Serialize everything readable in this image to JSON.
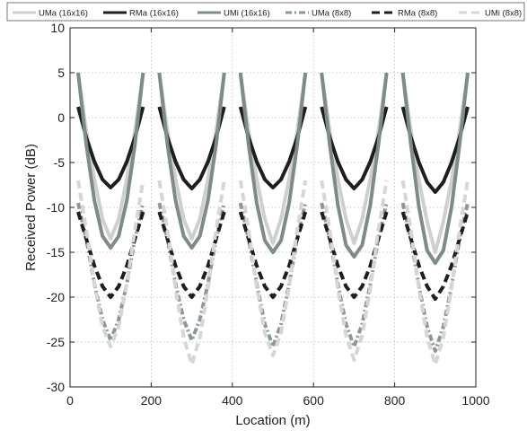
{
  "chart_data": {
    "type": "line",
    "xlabel": "Location (m)",
    "ylabel": "Received Power (dB)",
    "xlim": [
      0,
      1000
    ],
    "ylim": [
      -30,
      10
    ],
    "xticks": [
      "0",
      "200",
      "400",
      "600",
      "800",
      "1000"
    ],
    "yticks": [
      "-30",
      "-25",
      "-20",
      "-15",
      "-10",
      "-5",
      "0",
      "5",
      "10"
    ],
    "grid": true,
    "legend_position": "top",
    "series": [
      {
        "name": "UMa (16x16)",
        "color": "#cfcfcf",
        "style": "solid",
        "x": [
          20,
          40,
          60,
          80,
          100,
          120,
          140,
          160,
          180,
          null,
          220,
          240,
          260,
          280,
          300,
          320,
          340,
          360,
          380,
          null,
          420,
          440,
          460,
          480,
          500,
          520,
          540,
          560,
          580,
          null,
          620,
          640,
          660,
          680,
          700,
          720,
          740,
          760,
          780,
          null,
          820,
          840,
          860,
          880,
          900,
          920,
          940,
          960,
          980
        ],
        "y": [
          5,
          -1.5,
          -6.8,
          -11.3,
          -13.5,
          -11.3,
          -6.8,
          -1.5,
          5,
          null,
          5,
          -1.5,
          -6.8,
          -11.3,
          -13.5,
          -11.3,
          -6.8,
          -1.5,
          5,
          null,
          5,
          -1.5,
          -6.8,
          -11.3,
          -14,
          -11.3,
          -6.8,
          -1.5,
          5,
          null,
          5,
          -1.5,
          -6.8,
          -11.3,
          -14,
          -11.3,
          -6.8,
          -1.5,
          5,
          null,
          5,
          -1.5,
          -7,
          -11.6,
          -15,
          -11.6,
          -7,
          -1.5,
          5
        ]
      },
      {
        "name": "RMa (16x16)",
        "color": "#1e1e1e",
        "style": "solid",
        "x": [
          20,
          40,
          60,
          80,
          100,
          120,
          140,
          160,
          180,
          null,
          220,
          240,
          260,
          280,
          300,
          320,
          340,
          360,
          380,
          null,
          420,
          440,
          460,
          480,
          500,
          520,
          540,
          560,
          580,
          null,
          620,
          640,
          660,
          680,
          700,
          720,
          740,
          760,
          780,
          null,
          820,
          840,
          860,
          880,
          900,
          920,
          940,
          960,
          980
        ],
        "y": [
          1.2,
          -2.2,
          -4.9,
          -6.9,
          -7.8,
          -6.9,
          -4.9,
          -2.2,
          1.2,
          null,
          1.2,
          -2.2,
          -4.9,
          -6.9,
          -7.9,
          -6.9,
          -4.9,
          -2.2,
          1.2,
          null,
          1.2,
          -2.2,
          -4.9,
          -6.9,
          -7.8,
          -6.9,
          -4.9,
          -2.2,
          1.2,
          null,
          1.2,
          -2.2,
          -4.9,
          -6.9,
          -7.9,
          -6.9,
          -4.9,
          -2.2,
          1.2,
          null,
          1.2,
          -2.2,
          -5,
          -7.2,
          -8.3,
          -7.2,
          -5,
          -2.2,
          1.2
        ]
      },
      {
        "name": "UMi (16x16)",
        "color": "#7e8c85",
        "style": "solid",
        "x": [
          20,
          40,
          60,
          80,
          100,
          120,
          140,
          160,
          180,
          null,
          220,
          240,
          260,
          280,
          300,
          320,
          340,
          360,
          380,
          null,
          420,
          440,
          460,
          480,
          500,
          520,
          540,
          560,
          580,
          null,
          620,
          640,
          660,
          680,
          700,
          720,
          740,
          760,
          780,
          null,
          820,
          840,
          860,
          880,
          900,
          920,
          940,
          960,
          980
        ],
        "y": [
          5,
          -3,
          -9.2,
          -13.2,
          -14.5,
          -13.2,
          -9.2,
          -3,
          5,
          null,
          5,
          -3,
          -9.2,
          -13.2,
          -14.5,
          -13.2,
          -9.2,
          -3,
          5,
          null,
          5,
          -3,
          -9.5,
          -13.7,
          -15,
          -13.7,
          -9.5,
          -3,
          5,
          null,
          5,
          -3,
          -9.7,
          -14.2,
          -15.5,
          -14.2,
          -9.7,
          -3,
          5,
          null,
          5,
          -3,
          -10,
          -14.8,
          -16.2,
          -14.8,
          -10,
          -3,
          5
        ]
      },
      {
        "name": "UMa (8x8)",
        "color": "#8a9a92",
        "style": "dashdot",
        "x": [
          20,
          40,
          60,
          80,
          100,
          120,
          140,
          160,
          180,
          null,
          220,
          240,
          260,
          280,
          300,
          320,
          340,
          360,
          380,
          null,
          420,
          440,
          460,
          480,
          500,
          520,
          540,
          560,
          580,
          null,
          620,
          640,
          660,
          680,
          700,
          720,
          740,
          760,
          780,
          null,
          820,
          840,
          860,
          880,
          900,
          920,
          940,
          960,
          980
        ],
        "y": [
          -9.5,
          -13.5,
          -18.5,
          -22.5,
          -24.8,
          -22.5,
          -18.5,
          -13.5,
          -9.5,
          null,
          -9.5,
          -13.5,
          -18.5,
          -22.5,
          -24.8,
          -22.5,
          -18.5,
          -13.5,
          -9.5,
          null,
          -9.5,
          -13.5,
          -18.5,
          -23,
          -25.5,
          -23,
          -18.5,
          -13.5,
          -9.5,
          null,
          -9.5,
          -13.5,
          -18.5,
          -23,
          -25.5,
          -23,
          -18.5,
          -13.5,
          -9.5,
          null,
          -9.5,
          -13.5,
          -18.8,
          -23.3,
          -26,
          -23.3,
          -18.8,
          -13.5,
          -9.5
        ]
      },
      {
        "name": "RMa (8x8)",
        "color": "#1e1e1e",
        "style": "dashed",
        "x": [
          20,
          40,
          60,
          80,
          100,
          120,
          140,
          160,
          180,
          null,
          220,
          240,
          260,
          280,
          300,
          320,
          340,
          360,
          380,
          null,
          420,
          440,
          460,
          480,
          500,
          520,
          540,
          560,
          580,
          null,
          620,
          640,
          660,
          680,
          700,
          720,
          740,
          760,
          780,
          null,
          820,
          840,
          860,
          880,
          900,
          920,
          940,
          960,
          980
        ],
        "y": [
          -10.5,
          -13.5,
          -16.5,
          -18.8,
          -20,
          -18.8,
          -16.5,
          -13.5,
          -10.5,
          null,
          -10.5,
          -13.5,
          -16.5,
          -18.8,
          -20,
          -18.8,
          -16.5,
          -13.5,
          -10.5,
          null,
          -10.5,
          -13.5,
          -16.5,
          -18.8,
          -20,
          -18.8,
          -16.5,
          -13.5,
          -10.5,
          null,
          -10.5,
          -13.5,
          -16.5,
          -18.8,
          -20,
          -18.8,
          -16.5,
          -13.5,
          -10.5,
          null,
          -10.5,
          -13.5,
          -16.5,
          -18.8,
          -20.2,
          -18.8,
          -16.5,
          -13.5,
          -10.5
        ]
      },
      {
        "name": "UMi (8x8)",
        "color": "#d6d6d6",
        "style": "dashed",
        "x": [
          20,
          40,
          60,
          80,
          100,
          120,
          140,
          160,
          180,
          null,
          220,
          240,
          260,
          280,
          300,
          320,
          340,
          360,
          380,
          null,
          420,
          440,
          460,
          480,
          500,
          520,
          540,
          560,
          580,
          null,
          620,
          640,
          660,
          680,
          700,
          720,
          740,
          760,
          780,
          null,
          820,
          840,
          860,
          880,
          900,
          920,
          940,
          960,
          980
        ],
        "y": [
          -7,
          -12.5,
          -18.5,
          -23.3,
          -25.5,
          -23.3,
          -18.5,
          -12.5,
          -7,
          null,
          -7,
          -12.5,
          -19,
          -24.5,
          -27.5,
          -24.5,
          -19,
          -12.5,
          -7,
          null,
          -7,
          -12.5,
          -18.8,
          -24,
          -26.5,
          -24,
          -18.8,
          -12.5,
          -7,
          null,
          -7,
          -12.5,
          -19,
          -24.3,
          -27,
          -24.3,
          -19,
          -12.5,
          -7,
          null,
          -7,
          -12.5,
          -19,
          -24.5,
          -27.5,
          -24.5,
          -19,
          -12.5,
          -7
        ]
      }
    ]
  }
}
